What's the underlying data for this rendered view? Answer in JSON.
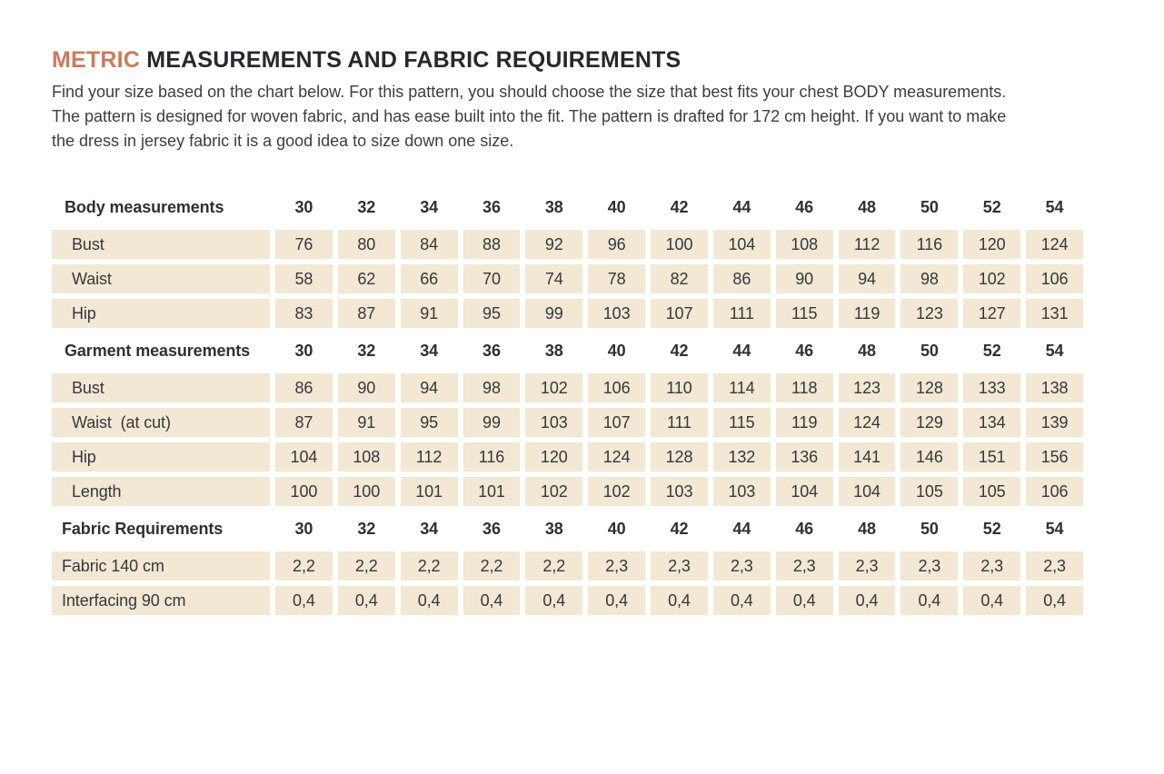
{
  "colors": {
    "accent": "#cd7a5a",
    "cell_bg": "#f2e8d3",
    "text": "#35383d"
  },
  "title": {
    "highlight": "METRIC",
    "rest": "MEASUREMENTS AND FABRIC REQUIREMENTS"
  },
  "intro_lines": [
    "Find your size based on the chart below. For this pattern, you should choose the size that best fits your chest BODY measurements.",
    "The pattern is designed for woven fabric, and has ease built into the fit. The pattern is drafted for 172 cm height. If you want to make",
    "the dress in jersey fabric it is a good idea to size down one size."
  ],
  "table": {
    "sizes": [
      "30",
      "32",
      "34",
      "36",
      "38",
      "40",
      "42",
      "44",
      "46",
      "48",
      "50",
      "52",
      "54"
    ],
    "sections": [
      {
        "header": "Body measurements",
        "rows": [
          {
            "label": "Bust",
            "values": [
              "76",
              "80",
              "84",
              "88",
              "92",
              "96",
              "100",
              "104",
              "108",
              "112",
              "116",
              "120",
              "124"
            ]
          },
          {
            "label": "Waist",
            "values": [
              "58",
              "62",
              "66",
              "70",
              "74",
              "78",
              "82",
              "86",
              "90",
              "94",
              "98",
              "102",
              "106"
            ]
          },
          {
            "label": "Hip",
            "values": [
              "83",
              "87",
              "91",
              "95",
              "99",
              "103",
              "107",
              "111",
              "115",
              "119",
              "123",
              "127",
              "131"
            ]
          }
        ]
      },
      {
        "header": "Garment measurements",
        "rows": [
          {
            "label": "Bust",
            "values": [
              "86",
              "90",
              "94",
              "98",
              "102",
              "106",
              "110",
              "114",
              "118",
              "123",
              "128",
              "133",
              "138"
            ]
          },
          {
            "label": "Waist  (at cut)",
            "values": [
              "87",
              "91",
              "95",
              "99",
              "103",
              "107",
              "111",
              "115",
              "119",
              "124",
              "129",
              "134",
              "139"
            ]
          },
          {
            "label": "Hip",
            "values": [
              "104",
              "108",
              "112",
              "116",
              "120",
              "124",
              "128",
              "132",
              "136",
              "141",
              "146",
              "151",
              "156"
            ]
          },
          {
            "label": "Length",
            "values": [
              "100",
              "100",
              "101",
              "101",
              "102",
              "102",
              "103",
              "103",
              "104",
              "104",
              "105",
              "105",
              "106"
            ]
          }
        ]
      },
      {
        "header": "Fabric Requirements",
        "rows": [
          {
            "label": "Fabric 140 cm",
            "values": [
              "2,2",
              "2,2",
              "2,2",
              "2,2",
              "2,2",
              "2,3",
              "2,3",
              "2,3",
              "2,3",
              "2,3",
              "2,3",
              "2,3",
              "2,3"
            ]
          },
          {
            "label": "Interfacing 90 cm",
            "values": [
              "0,4",
              "0,4",
              "0,4",
              "0,4",
              "0,4",
              "0,4",
              "0,4",
              "0,4",
              "0,4",
              "0,4",
              "0,4",
              "0,4",
              "0,4"
            ]
          }
        ]
      }
    ]
  }
}
